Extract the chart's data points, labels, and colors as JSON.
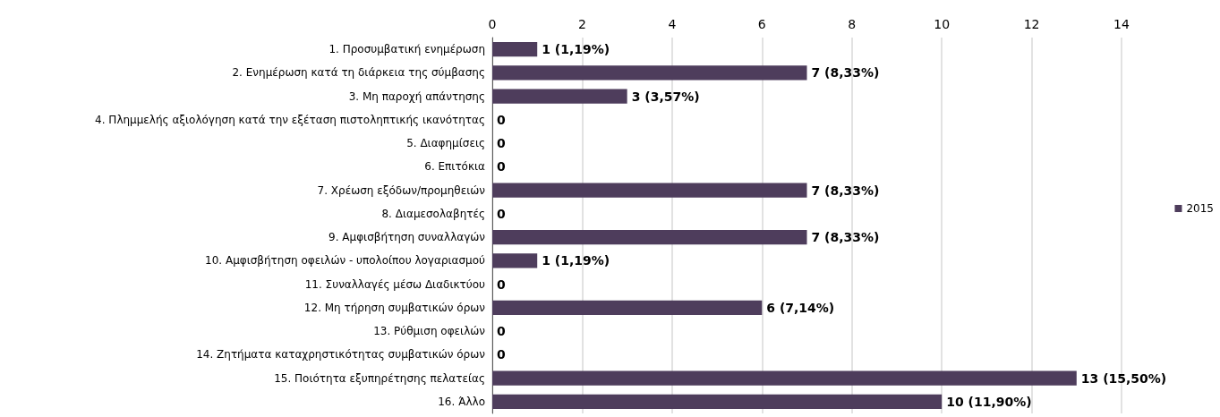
{
  "chart_data": {
    "type": "bar",
    "orientation": "horizontal",
    "categories": [
      "1. Προσυμβατική ενημέρωση",
      "2. Ενημέρωση κατά τη διάρκεια της σύμβασης",
      "3. Μη παροχή απάντησης",
      "4. Πλημμελής αξιολόγηση κατά την εξέταση πιστοληπτικής ικανότητας",
      "5. Διαφημίσεις",
      "6. Επιτόκια",
      "7. Χρέωση εξόδων/προμηθειών",
      "8. Διαμεσολαβητές",
      "9. Αμφισβήτηση συναλλαγών",
      "10. Αμφισβήτηση οφειλών - υπολοίπου λογαριασμού",
      "11. Συναλλαγές μέσω Διαδικτύου",
      "12. Μη τήρηση συμβατικών όρων",
      "13. Ρύθμιση οφειλών",
      "14. Ζητήματα καταχρηστικότητας συμβατικών όρων",
      "15. Ποιότητα εξυπηρέτησης πελατείας",
      "16. Άλλο"
    ],
    "series": [
      {
        "name": "2015",
        "color": "#4e3d5c",
        "values": [
          1,
          7,
          3,
          0,
          0,
          0,
          7,
          0,
          7,
          1,
          0,
          6,
          0,
          0,
          13,
          10
        ],
        "value_labels": [
          "1 (1,19%)",
          "7 (8,33%)",
          "3 (3,57%)",
          "0",
          "0",
          "0",
          "7 (8,33%)",
          "0",
          "7 (8,33%)",
          "1 (1,19%)",
          "0",
          "6 (7,14%)",
          "0",
          "0",
          "13 (15,50%)",
          "10 (11,90%)"
        ]
      }
    ],
    "xlim": [
      0,
      14
    ],
    "xticks": [
      0,
      2,
      4,
      6,
      8,
      10,
      12,
      14
    ],
    "grid": "x",
    "legend": "right"
  }
}
